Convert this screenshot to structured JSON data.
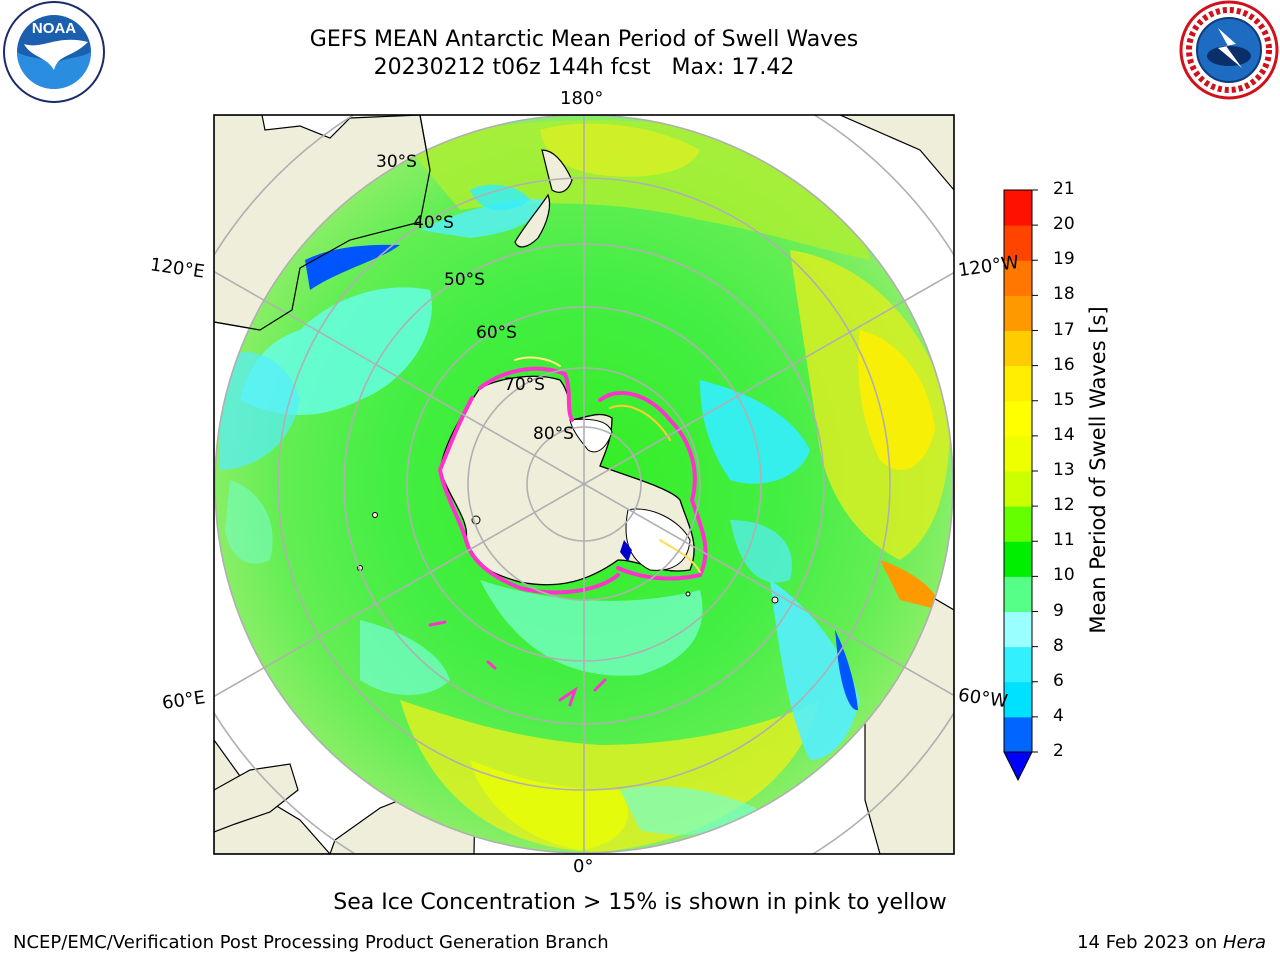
{
  "title": {
    "line1": "GEFS MEAN Antarctic Mean Period of Swell Waves",
    "line2": "20230212 t06z 144h fcst   Max: 17.42"
  },
  "logos": {
    "left": {
      "name": "noaa-logo",
      "text": "NOAA"
    },
    "right": {
      "name": "nws-logo",
      "text": "NATIONAL WEATHER SERVICE"
    }
  },
  "map": {
    "projection": "south-polar-stereographic",
    "longitude_labels": {
      "top": "180°",
      "bottom": "0°",
      "upper_left": "120°E",
      "upper_right": "120°W",
      "lower_left": "60°E",
      "lower_right": "60°W"
    },
    "latitude_labels": [
      "30°S",
      "40°S",
      "50°S",
      "60°S",
      "70°S",
      "80°S"
    ],
    "colors": {
      "land": "#efeedb",
      "grid": "#b0b0b0",
      "coast": "#000000",
      "ice_edge": "#ff33cc"
    }
  },
  "colorbar": {
    "label": "Mean Period of Swell Waves [s]",
    "ticks": [
      "2",
      "4",
      "6",
      "8",
      "9",
      "10",
      "11",
      "12",
      "13",
      "14",
      "15",
      "16",
      "17",
      "18",
      "19",
      "20",
      "21"
    ],
    "colors": [
      "#0066ff",
      "#00e0ff",
      "#33f0ff",
      "#99ffff",
      "#55ff88",
      "#00ee00",
      "#66ff00",
      "#ccff00",
      "#eeff00",
      "#ffff00",
      "#ffee00",
      "#ffcc00",
      "#ff9900",
      "#ff7700",
      "#ff4400",
      "#ff1100"
    ],
    "extend_min_color": "#0000ff"
  },
  "caption": "Sea Ice Concentration > 15% is shown in pink to yellow",
  "footer": {
    "left": "NCEP/EMC/Verification Post Processing Product Generation Branch",
    "right_date": "14 Feb 2023 on ",
    "right_host": "Hera"
  }
}
